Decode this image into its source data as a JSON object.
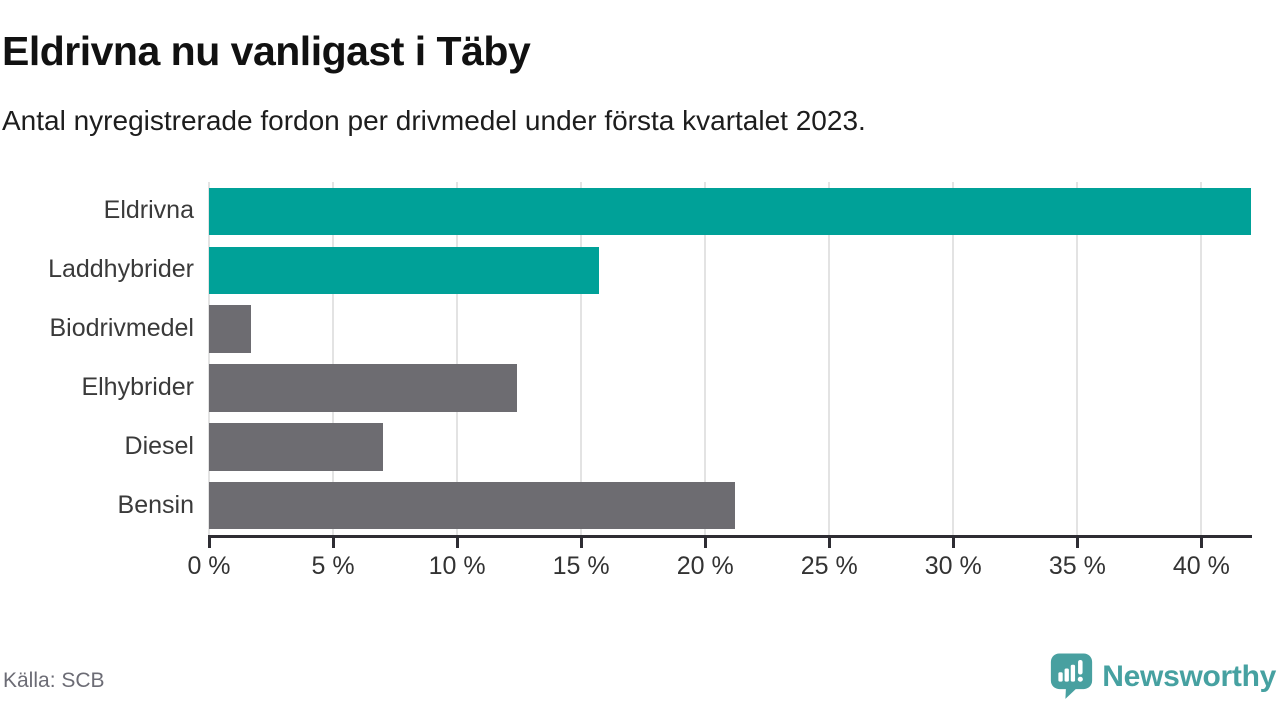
{
  "header": {
    "title": "Eldrivna nu vanligast i Täby",
    "subtitle": "Antal nyregistrerade fordon per drivmedel under första kvartalet 2023."
  },
  "footer": {
    "source": "Källa: SCB",
    "brand": "Newsworthy"
  },
  "colors": {
    "highlight_bar": "#00A198",
    "neutral_bar": "#6D6C71",
    "axis": "#2E2D33",
    "gridline": "#E3E3E3",
    "category_label": "#3A3A3A",
    "tick_label": "#333333",
    "source_text": "#6C6C75",
    "brand_teal": "#48A0A0"
  },
  "chart_data": {
    "type": "bar",
    "orientation": "horizontal",
    "title": "Eldrivna nu vanligast i Täby",
    "subtitle": "Antal nyregistrerade fordon per drivmedel under första kvartalet 2023.",
    "categories": [
      "Eldrivna",
      "Laddhybrider",
      "Biodrivmedel",
      "Elhybrider",
      "Diesel",
      "Bensin"
    ],
    "values": [
      42.0,
      15.7,
      1.7,
      12.4,
      7.0,
      21.2
    ],
    "bar_colors": [
      "#00A198",
      "#00A198",
      "#6D6C71",
      "#6D6C71",
      "#6D6C71",
      "#6D6C71"
    ],
    "unit": "%",
    "xlabel": "",
    "ylabel": "",
    "xlim": [
      0,
      42
    ],
    "xticks": [
      0,
      5,
      10,
      15,
      20,
      25,
      30,
      35,
      40
    ],
    "xtick_labels": [
      "0 %",
      "5 %",
      "10 %",
      "15 %",
      "20 %",
      "25 %",
      "30 %",
      "35 %",
      "40 %"
    ],
    "grid": true,
    "legend": false,
    "source": "Källa: SCB"
  }
}
